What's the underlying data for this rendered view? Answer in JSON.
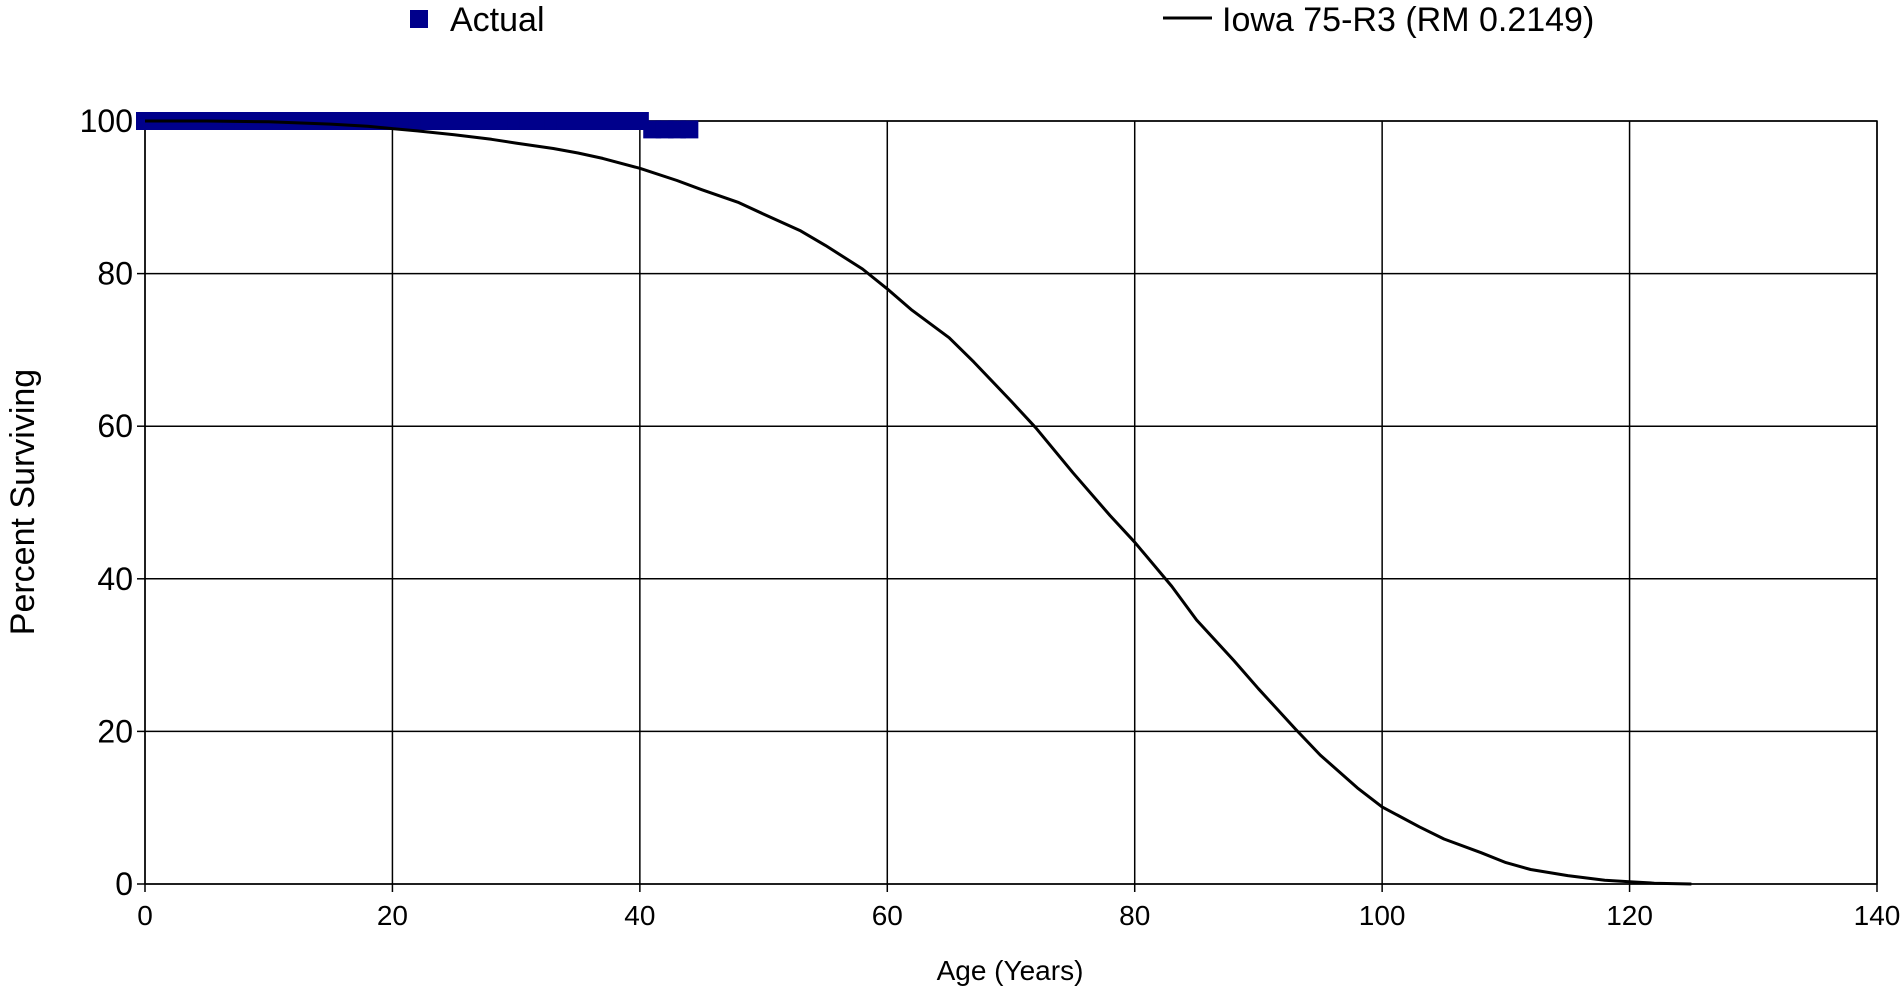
{
  "chart_data": {
    "type": "scatter",
    "xlabel": "Age (Years)",
    "ylabel": "Percent Surviving",
    "xlim": [
      0,
      140
    ],
    "ylim": [
      0,
      100
    ],
    "xticks": [
      0,
      20,
      40,
      60,
      80,
      100,
      120,
      140
    ],
    "yticks": [
      0,
      20,
      40,
      60,
      80,
      100
    ],
    "grid": true,
    "legend_position": "top",
    "legend": [
      {
        "label": "Actual",
        "marker": "square",
        "color": "#00008B"
      },
      {
        "label": "Iowa 75-R3 (RM 0.2149)",
        "marker": "line",
        "color": "#000000"
      }
    ],
    "series": [
      {
        "name": "Actual",
        "style": "markers",
        "color": "#00008B",
        "x": [
          0,
          1,
          2,
          3,
          4,
          5,
          6,
          7,
          8,
          9,
          10,
          11,
          12,
          13,
          14,
          15,
          16,
          17,
          18,
          19,
          20,
          21,
          22,
          23,
          24,
          25,
          26,
          27,
          28,
          29,
          30,
          31,
          32,
          33,
          34,
          35,
          36,
          37,
          38,
          39,
          40,
          41,
          42,
          43,
          44
        ],
        "y": [
          100,
          100,
          100,
          100,
          100,
          100,
          100,
          100,
          100,
          100,
          100,
          100,
          100,
          100,
          100,
          100,
          100,
          100,
          100,
          100,
          100,
          100,
          100,
          100,
          100,
          100,
          100,
          100,
          100,
          100,
          100,
          100,
          100,
          100,
          100,
          100,
          100,
          100,
          100,
          100,
          100,
          98.9,
          98.9,
          98.9,
          98.9
        ]
      },
      {
        "name": "Iowa 75-R3 (RM 0.2149)",
        "style": "line",
        "color": "#000000",
        "x": [
          0,
          5,
          10,
          15,
          18,
          20,
          22,
          25,
          28,
          30,
          33,
          35,
          37,
          40,
          43,
          45,
          48,
          50,
          53,
          55,
          58,
          60,
          62,
          65,
          67,
          70,
          72,
          75,
          78,
          80,
          83,
          85,
          88,
          90,
          93,
          95,
          98,
          100,
          103,
          105,
          108,
          110,
          112,
          115,
          118,
          120,
          122,
          125
        ],
        "y": [
          100,
          100,
          99.9,
          99.6,
          99.3,
          99,
          98.7,
          98.2,
          97.6,
          97.1,
          96.4,
          95.8,
          95.1,
          93.8,
          92.2,
          91,
          89.3,
          87.8,
          85.6,
          83.7,
          80.6,
          78,
          75.2,
          71.6,
          68.4,
          63.3,
          59.8,
          53.9,
          48.3,
          44.8,
          39,
          34.6,
          29.3,
          25.6,
          20.3,
          16.9,
          12.6,
          10.1,
          7.5,
          5.9,
          4.1,
          2.8,
          1.9,
          1.1,
          0.5,
          0.3,
          0.1,
          0
        ]
      }
    ]
  }
}
